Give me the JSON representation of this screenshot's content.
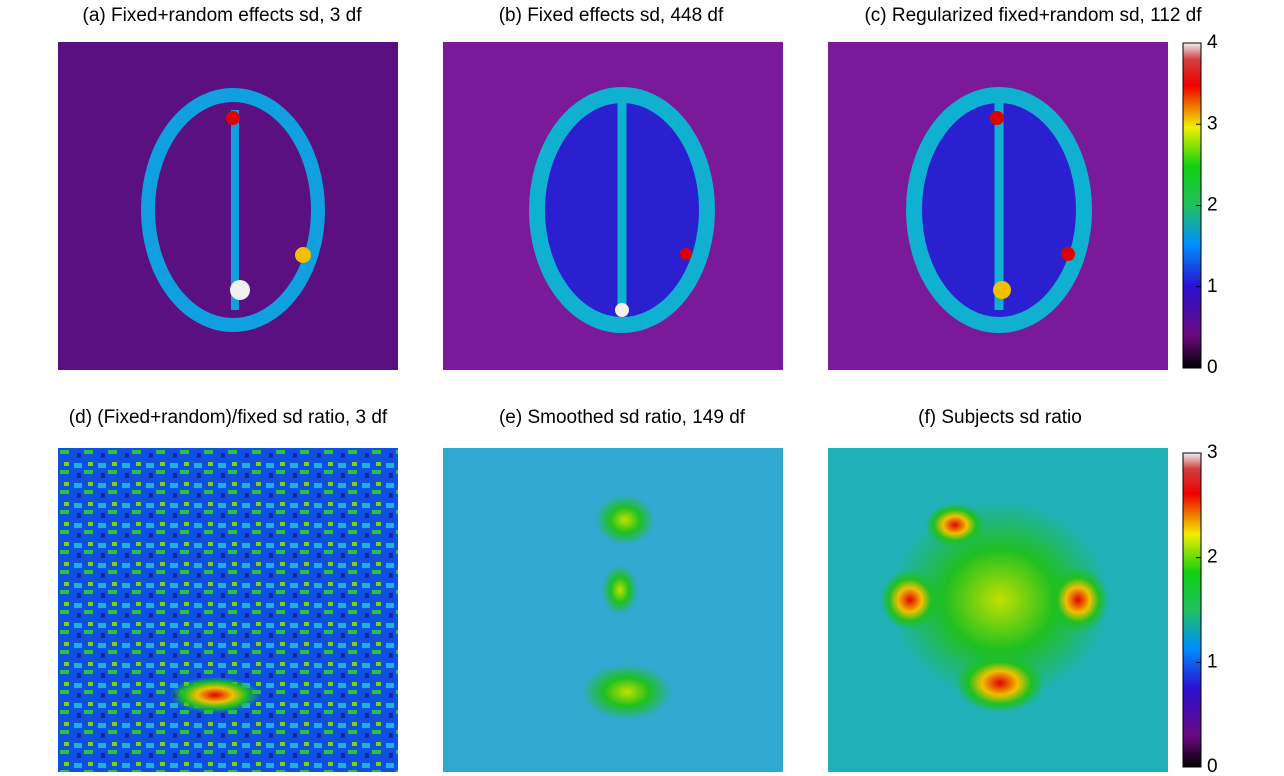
{
  "chart_data": [
    {
      "type": "heatmap",
      "title": "(a) Fixed+random effects sd, 3 df"
    },
    {
      "type": "heatmap",
      "title": "(b) Fixed effects sd, 448 df"
    },
    {
      "type": "heatmap",
      "title": "(c) Regularized fixed+random sd, 112 df",
      "clim": [
        0,
        4
      ],
      "cticks": [
        0,
        1,
        2,
        3,
        4
      ]
    },
    {
      "type": "heatmap",
      "title": "(d) (Fixed+random)/fixed sd ratio, 3 df"
    },
    {
      "type": "heatmap",
      "title": "(e) Smoothed sd ratio, 149 df"
    },
    {
      "type": "heatmap",
      "title": "(f) Subjects sd ratio",
      "clim": [
        0,
        3
      ],
      "cticks": [
        0,
        1,
        2,
        3
      ]
    }
  ]
}
